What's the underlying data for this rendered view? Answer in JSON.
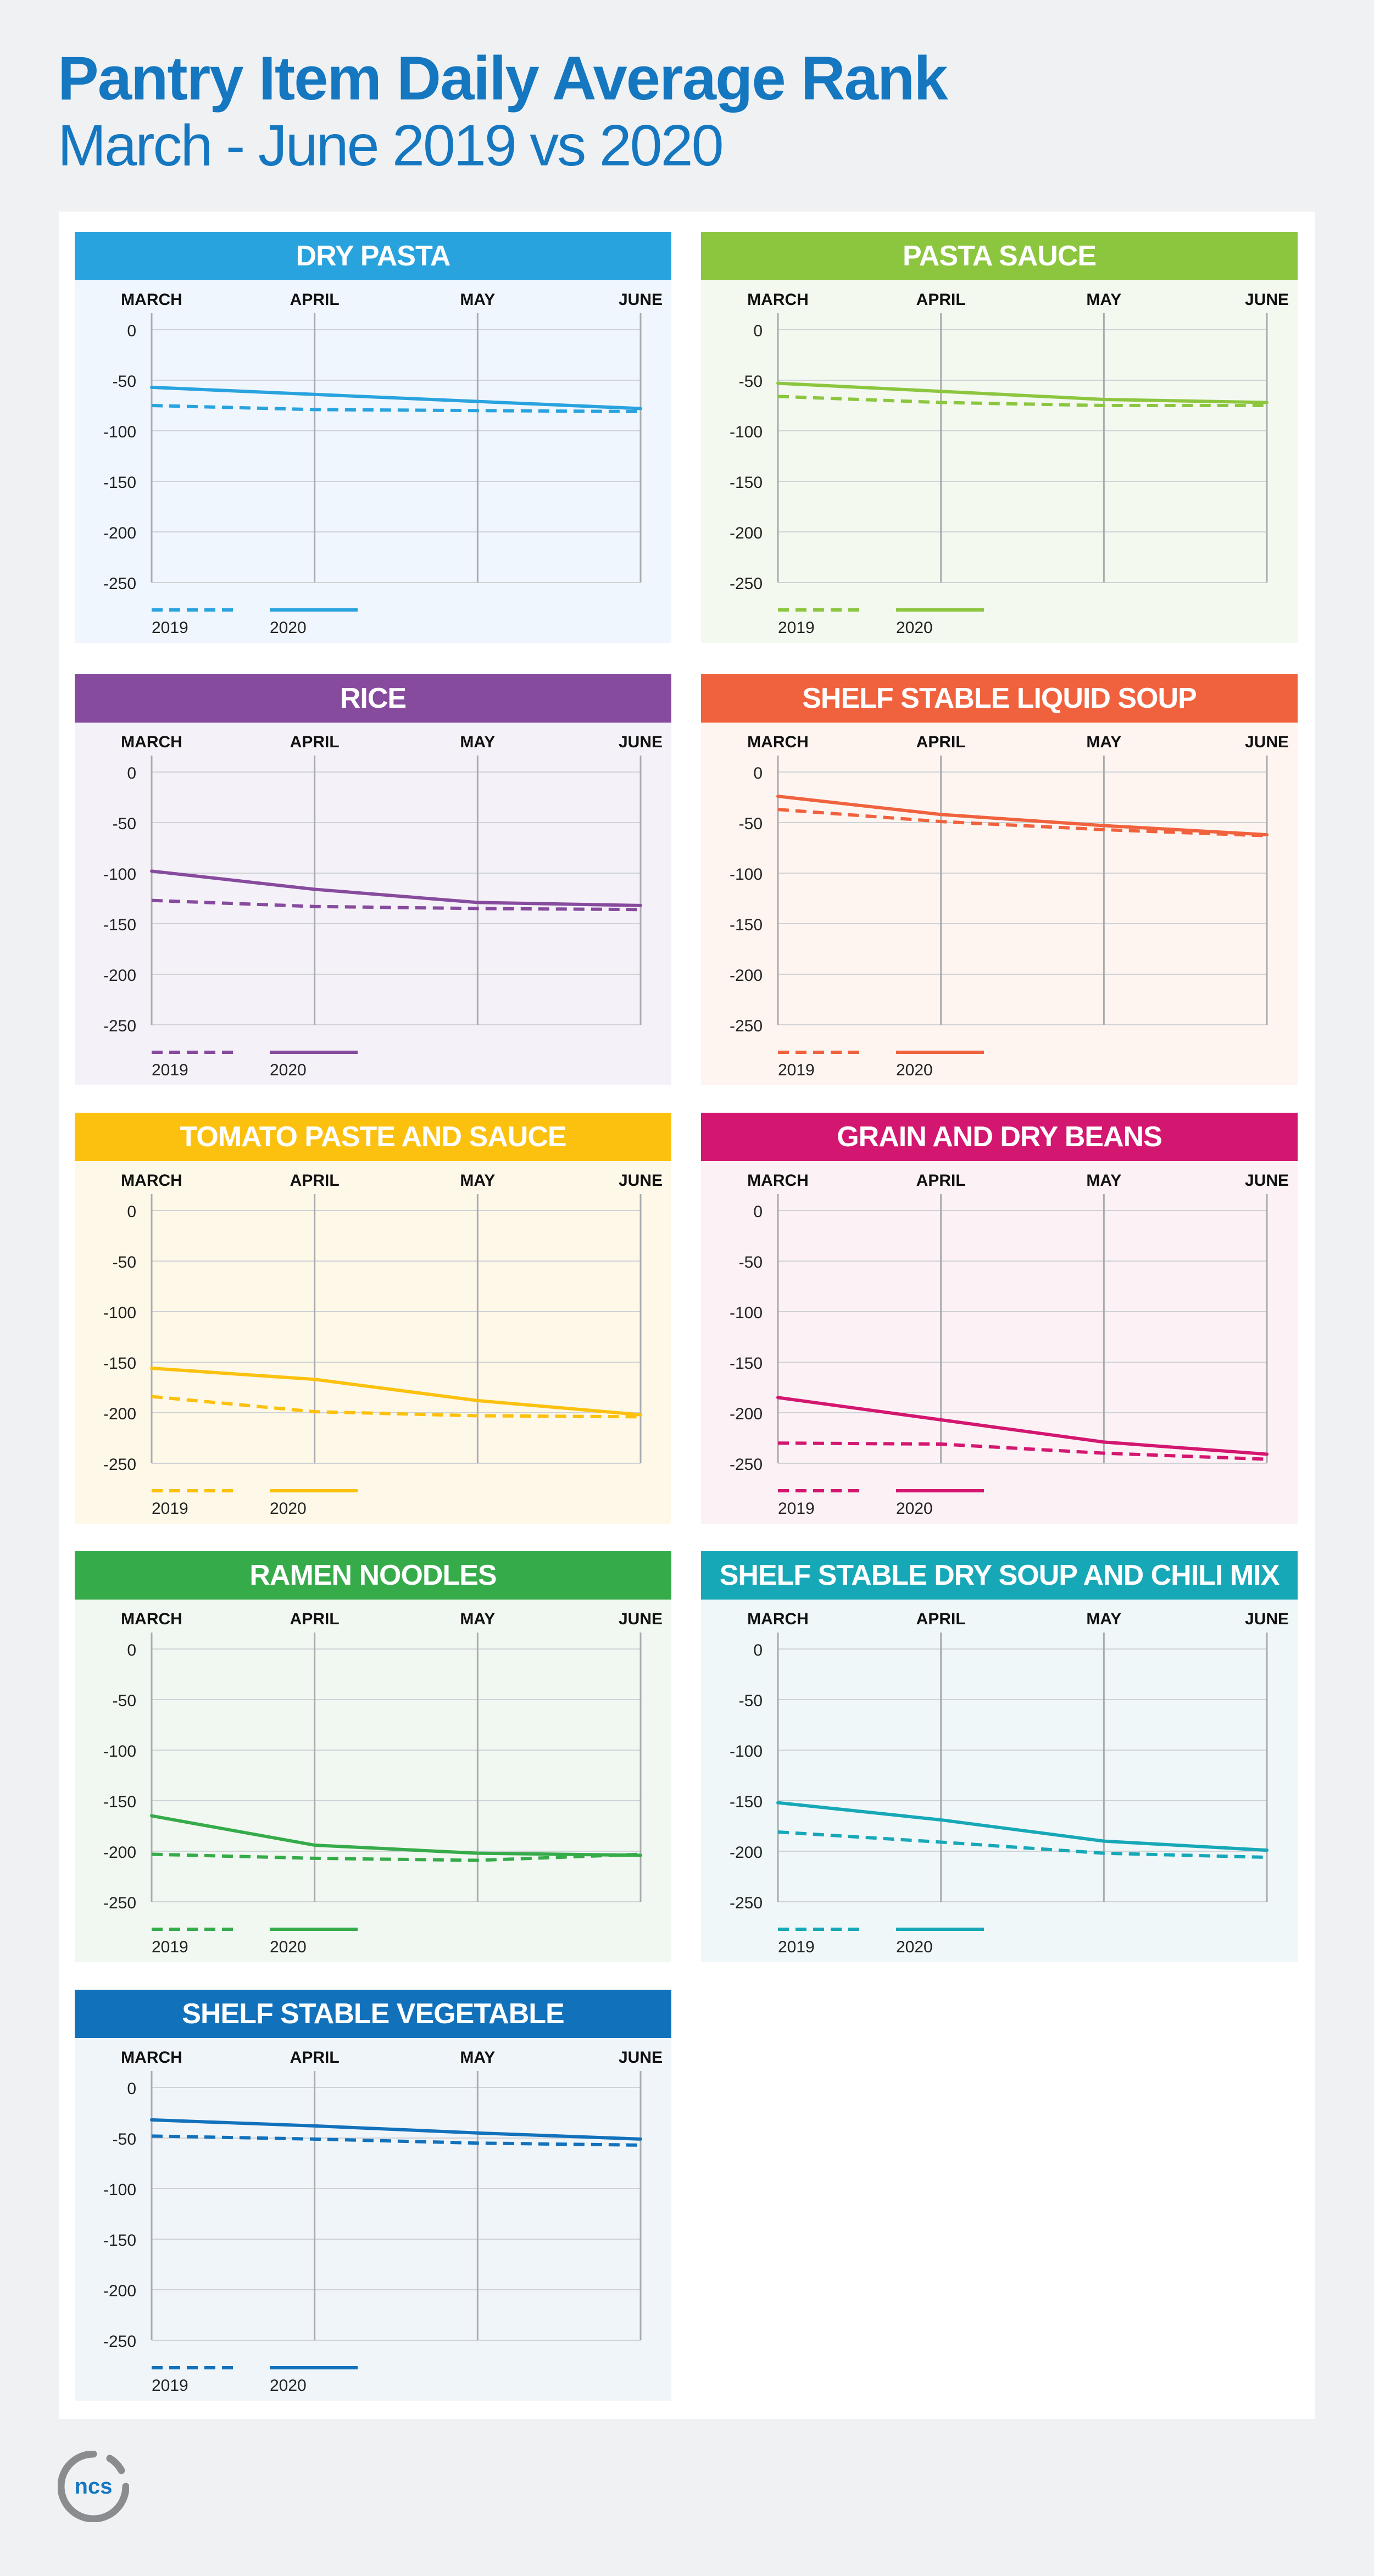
{
  "title": "Pantry Item Daily Average Rank",
  "subtitle": "March - June 2019 vs 2020",
  "logo_text": "ncs",
  "chart_data": [
    {
      "type": "line",
      "title": "DRY PASTA",
      "color": "#29a3de",
      "bg": "#eff6fd",
      "categories": [
        "MARCH",
        "APRIL",
        "MAY",
        "JUNE"
      ],
      "ylim": [
        -250,
        0
      ],
      "yticks": [
        "0",
        "-50",
        "-100",
        "-150",
        "-200",
        "-250"
      ],
      "series": [
        {
          "name": "2019",
          "style": "dashed",
          "values": [
            -75,
            -79,
            -80,
            -81
          ]
        },
        {
          "name": "2020",
          "style": "solid",
          "values": [
            -57,
            -64,
            -71,
            -78
          ]
        }
      ]
    },
    {
      "type": "line",
      "title": "PASTA SAUCE",
      "color": "#8cc63f",
      "bg": "#f3f9ee",
      "categories": [
        "MARCH",
        "APRIL",
        "MAY",
        "JUNE"
      ],
      "ylim": [
        -250,
        0
      ],
      "yticks": [
        "0",
        "-50",
        "-100",
        "-150",
        "-200",
        "-250"
      ],
      "series": [
        {
          "name": "2019",
          "style": "dashed",
          "values": [
            -66,
            -72,
            -75,
            -75
          ]
        },
        {
          "name": "2020",
          "style": "solid",
          "values": [
            -53,
            -61,
            -69,
            -72
          ]
        }
      ]
    },
    {
      "type": "line",
      "title": "RICE",
      "color": "#874b9e",
      "bg": "#f5f1f8",
      "categories": [
        "MARCH",
        "APRIL",
        "MAY",
        "JUNE"
      ],
      "ylim": [
        -250,
        0
      ],
      "yticks": [
        "0",
        "-50",
        "-100",
        "-150",
        "-200",
        "-250"
      ],
      "series": [
        {
          "name": "2019",
          "style": "dashed",
          "values": [
            -127,
            -133,
            -135,
            -136
          ]
        },
        {
          "name": "2020",
          "style": "solid",
          "values": [
            -98,
            -116,
            -129,
            -132
          ]
        }
      ]
    },
    {
      "type": "line",
      "title": "SHELF STABLE LIQUID SOUP",
      "color": "#f0623e",
      "bg": "#fef5f1",
      "categories": [
        "MARCH",
        "APRIL",
        "MAY",
        "JUNE"
      ],
      "ylim": [
        -250,
        0
      ],
      "yticks": [
        "0",
        "-50",
        "-100",
        "-150",
        "-200",
        "-250"
      ],
      "series": [
        {
          "name": "2019",
          "style": "dashed",
          "values": [
            -37,
            -49,
            -57,
            -63
          ]
        },
        {
          "name": "2020",
          "style": "solid",
          "values": [
            -24,
            -42,
            -53,
            -62
          ]
        }
      ]
    },
    {
      "type": "line",
      "title": "TOMATO PASTE AND SAUCE",
      "color": "#fcc10f",
      "bg": "#fef8e8",
      "categories": [
        "MARCH",
        "APRIL",
        "MAY",
        "JUNE"
      ],
      "ylim": [
        -250,
        0
      ],
      "yticks": [
        "0",
        "-50",
        "-100",
        "-150",
        "-200",
        "-250"
      ],
      "series": [
        {
          "name": "2019",
          "style": "dashed",
          "values": [
            -184,
            -199,
            -203,
            -204
          ]
        },
        {
          "name": "2020",
          "style": "solid",
          "values": [
            -156,
            -167,
            -188,
            -202
          ]
        }
      ]
    },
    {
      "type": "line",
      "title": "GRAIN AND DRY BEANS",
      "color": "#d3166f",
      "bg": "#fcf1f5",
      "categories": [
        "MARCH",
        "APRIL",
        "MAY",
        "JUNE"
      ],
      "ylim": [
        -250,
        0
      ],
      "yticks": [
        "0",
        "-50",
        "-100",
        "-150",
        "-200",
        "-250"
      ],
      "series": [
        {
          "name": "2019",
          "style": "dashed",
          "values": [
            -230,
            -231,
            -240,
            -246
          ]
        },
        {
          "name": "2020",
          "style": "solid",
          "values": [
            -185,
            -207,
            -229,
            -241
          ]
        }
      ]
    },
    {
      "type": "line",
      "title": "RAMEN NOODLES",
      "color": "#36ab4a",
      "bg": "#f1f8f1",
      "categories": [
        "MARCH",
        "APRIL",
        "MAY",
        "JUNE"
      ],
      "ylim": [
        -250,
        0
      ],
      "yticks": [
        "0",
        "-50",
        "-100",
        "-150",
        "-200",
        "-250"
      ],
      "series": [
        {
          "name": "2019",
          "style": "dashed",
          "values": [
            -203,
            -207,
            -209,
            -203
          ]
        },
        {
          "name": "2020",
          "style": "solid",
          "values": [
            -165,
            -194,
            -202,
            -204
          ]
        }
      ]
    },
    {
      "type": "line",
      "title": "SHELF STABLE DRY SOUP AND CHILI MIX",
      "color": "#17a8b8",
      "bg": "#eff7f9",
      "categories": [
        "MARCH",
        "APRIL",
        "MAY",
        "JUNE"
      ],
      "ylim": [
        -250,
        0
      ],
      "yticks": [
        "0",
        "-50",
        "-100",
        "-150",
        "-200",
        "-250"
      ],
      "series": [
        {
          "name": "2019",
          "style": "dashed",
          "values": [
            -181,
            -191,
            -202,
            -206
          ]
        },
        {
          "name": "2020",
          "style": "solid",
          "values": [
            -152,
            -169,
            -190,
            -199
          ]
        }
      ]
    },
    {
      "type": "line",
      "title": "SHELF STABLE VEGETABLE",
      "color": "#1271bb",
      "bg": "#f0f5fa",
      "categories": [
        "MARCH",
        "APRIL",
        "MAY",
        "JUNE"
      ],
      "ylim": [
        -250,
        0
      ],
      "yticks": [
        "0",
        "-50",
        "-100",
        "-150",
        "-200",
        "-250"
      ],
      "series": [
        {
          "name": "2019",
          "style": "dashed",
          "values": [
            -48,
            -51,
            -55,
            -57
          ]
        },
        {
          "name": "2020",
          "style": "solid",
          "values": [
            -32,
            -38,
            -45,
            -51
          ]
        }
      ]
    }
  ]
}
